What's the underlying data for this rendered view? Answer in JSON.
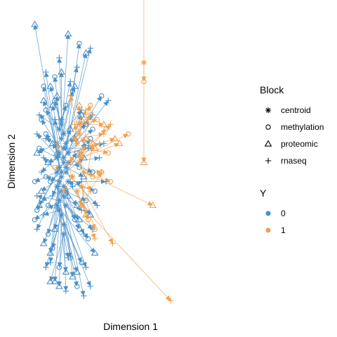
{
  "chart_data": {
    "type": "scatter",
    "title": "",
    "xlabel": "Dimension 1",
    "ylabel": "Dimension 2",
    "xlim": [
      -3.2,
      3.2
    ],
    "ylim": [
      -3.0,
      3.0
    ],
    "show_axes": false,
    "grid": false,
    "colors": {
      "0": "#4a90c8",
      "1": "#f0a050"
    },
    "legends": [
      {
        "title": "Block",
        "position": "right",
        "entries": [
          {
            "label": "centroid",
            "shape": "asterisk"
          },
          {
            "label": "methylation",
            "shape": "circle"
          },
          {
            "label": "proteomic",
            "shape": "triangle"
          },
          {
            "label": "rnaseq",
            "shape": "plus"
          }
        ]
      },
      {
        "title": "Y",
        "position": "right",
        "entries": [
          {
            "label": "0",
            "color": "#4a90c8"
          },
          {
            "label": "1",
            "color": "#f0a050"
          }
        ]
      }
    ],
    "samples": [
      {
        "y": "0",
        "centroid": [
          -1.8,
          -0.1
        ],
        "points": {
          "methylation": [
            -2.5,
            1.6
          ],
          "proteomic": [
            -2.9,
            2.9
          ],
          "rnaseq": [
            -2.4,
            1.9
          ]
        }
      },
      {
        "y": "0",
        "centroid": [
          -1.5,
          0.3
        ],
        "points": {
          "methylation": [
            -0.9,
            2.5
          ],
          "proteomic": [
            -0.6,
            2.3
          ],
          "rnaseq": [
            -0.4,
            2.4
          ]
        }
      },
      {
        "y": "0",
        "centroid": [
          -1.7,
          -0.6
        ],
        "points": {
          "methylation": [
            -2.6,
            -0.8
          ],
          "proteomic": [
            -2.0,
            -2.5
          ],
          "rnaseq": [
            -0.7,
            -2.8
          ]
        }
      },
      {
        "y": "0",
        "centroid": [
          -1.6,
          0.1
        ],
        "points": {
          "methylation": [
            0.1,
            1.4
          ],
          "proteomic": [
            -2.1,
            1.2
          ],
          "rnaseq": [
            0.4,
            1.3
          ]
        }
      },
      {
        "y": "0",
        "centroid": [
          -1.9,
          -0.9
        ],
        "points": {
          "methylation": [
            -0.8,
            -2.1
          ],
          "proteomic": [
            -0.2,
            -1.9
          ],
          "rnaseq": [
            -0.4,
            -2.6
          ]
        }
      },
      {
        "y": "0",
        "centroid": [
          -1.7,
          0.5
        ],
        "points": {
          "methylation": [
            -2.0,
            1.8
          ],
          "proteomic": [
            -1.4,
            2.7
          ],
          "rnaseq": [
            -1.0,
            2.0
          ]
        }
      },
      {
        "y": "0",
        "centroid": [
          -1.8,
          -0.4
        ],
        "points": {
          "methylation": [
            -2.4,
            -0.3
          ],
          "proteomic": [
            -2.2,
            -1.9
          ],
          "rnaseq": [
            -2.8,
            -1.4
          ]
        }
      },
      {
        "y": "0",
        "centroid": [
          -1.5,
          -0.2
        ],
        "points": {
          "methylation": [
            -0.4,
            0.5
          ],
          "proteomic": [
            -0.7,
            0.1
          ],
          "rnaseq": [
            -0.1,
            -0.9
          ]
        }
      },
      {
        "y": "0",
        "centroid": [
          -1.6,
          0.0
        ],
        "points": {
          "methylation": [
            -2.8,
            -1.0
          ],
          "proteomic": [
            -2.1,
            0.4
          ],
          "rnaseq": [
            -2.8,
            0.6
          ]
        }
      },
      {
        "y": "0",
        "centroid": [
          -1.9,
          -0.5
        ],
        "points": {
          "methylation": [
            -1.0,
            -2.6
          ],
          "proteomic": [
            -1.5,
            -2.3
          ],
          "rnaseq": [
            -0.6,
            -2.2
          ]
        }
      },
      {
        "y": "0",
        "centroid": [
          -1.4,
          0.2
        ],
        "points": {
          "methylation": [
            -0.3,
            0.7
          ],
          "proteomic": [
            -0.8,
            1.0
          ],
          "rnaseq": [
            0.2,
            0.4
          ]
        }
      },
      {
        "y": "0",
        "centroid": [
          -1.7,
          -0.3
        ],
        "points": {
          "methylation": [
            -2.3,
            -1.5
          ],
          "proteomic": [
            -2.6,
            -0.6
          ],
          "rnaseq": [
            -2.2,
            -2.1
          ]
        }
      },
      {
        "y": "0",
        "centroid": [
          -1.6,
          -0.7
        ],
        "points": {
          "methylation": [
            -0.9,
            -1.4
          ],
          "proteomic": [
            -1.2,
            -2.4
          ],
          "rnaseq": [
            -0.8,
            -1.0
          ]
        }
      },
      {
        "y": "0",
        "centroid": [
          -1.8,
          0.2
        ],
        "points": {
          "methylation": [
            -2.4,
            0.6
          ],
          "proteomic": [
            -2.5,
            1.3
          ],
          "rnaseq": [
            -2.0,
            0.9
          ]
        }
      },
      {
        "y": "0",
        "centroid": [
          -1.5,
          -0.9
        ],
        "points": {
          "methylation": [
            -0.5,
            -1.6
          ],
          "proteomic": [
            -0.9,
            -1.2
          ],
          "rnaseq": [
            -0.3,
            -1.4
          ]
        }
      },
      {
        "y": "0",
        "centroid": [
          -1.9,
          0.1
        ],
        "points": {
          "methylation": [
            -2.7,
            0.3
          ],
          "proteomic": [
            -2.3,
            0.0
          ],
          "rnaseq": [
            -2.6,
            -0.2
          ]
        }
      },
      {
        "y": "0",
        "centroid": [
          -1.6,
          0.6
        ],
        "points": {
          "methylation": [
            -1.2,
            1.5
          ],
          "proteomic": [
            -2.2,
            1.6
          ],
          "rnaseq": [
            -0.8,
            1.1
          ]
        }
      },
      {
        "y": "0",
        "centroid": [
          -1.7,
          -1.1
        ],
        "points": {
          "methylation": [
            -2.1,
            -1.8
          ],
          "proteomic": [
            -1.8,
            -2.6
          ],
          "rnaseq": [
            -2.4,
            -2.2
          ]
        }
      },
      {
        "y": "0",
        "centroid": [
          -1.5,
          0.4
        ],
        "points": {
          "methylation": [
            -0.6,
            0.8
          ],
          "proteomic": [
            -1.1,
            0.5
          ],
          "rnaseq": [
            -0.3,
            1.0
          ]
        }
      },
      {
        "y": "0",
        "centroid": [
          -1.8,
          -0.8
        ],
        "points": {
          "methylation": [
            -2.9,
            -1.2
          ],
          "proteomic": [
            -2.5,
            -1.7
          ],
          "rnaseq": [
            -2.8,
            -0.7
          ]
        }
      },
      {
        "y": "0",
        "centroid": [
          -1.4,
          -0.4
        ],
        "points": {
          "methylation": [
            -0.2,
            -0.6
          ],
          "proteomic": [
            -0.4,
            -1.1
          ],
          "rnaseq": [
            0.3,
            -0.4
          ]
        }
      },
      {
        "y": "0",
        "centroid": [
          -1.7,
          0.8
        ],
        "points": {
          "methylation": [
            -2.0,
            1.3
          ],
          "proteomic": [
            -1.7,
            1.9
          ],
          "rnaseq": [
            -1.3,
            1.7
          ]
        }
      },
      {
        "y": "0",
        "centroid": [
          -1.6,
          -1.3
        ],
        "points": {
          "methylation": [
            -1.3,
            -2.0
          ],
          "proteomic": [
            -1.0,
            -2.3
          ],
          "rnaseq": [
            -1.5,
            -2.7
          ]
        }
      },
      {
        "y": "0",
        "centroid": [
          -1.9,
          0.4
        ],
        "points": {
          "methylation": [
            -2.6,
            0.9
          ],
          "proteomic": [
            -2.8,
            0.2
          ],
          "rnaseq": [
            -2.4,
            0.5
          ]
        }
      },
      {
        "y": "0",
        "centroid": [
          -1.5,
          -0.1
        ],
        "points": {
          "methylation": [
            -1.0,
            0.2
          ],
          "proteomic": [
            -0.7,
            -0.3
          ],
          "rnaseq": [
            -1.2,
            -0.5
          ]
        }
      },
      {
        "y": "0",
        "centroid": [
          -1.8,
          -1.0
        ],
        "points": {
          "methylation": [
            -2.3,
            -0.9
          ],
          "proteomic": [
            -2.0,
            -1.4
          ],
          "rnaseq": [
            -2.5,
            -1.1
          ]
        }
      },
      {
        "y": "0",
        "centroid": [
          -1.6,
          0.3
        ],
        "points": {
          "methylation": [
            -0.9,
            -0.1
          ],
          "proteomic": [
            -1.3,
            0.7
          ],
          "rnaseq": [
            -0.5,
            0.3
          ]
        }
      },
      {
        "y": "0",
        "centroid": [
          -1.7,
          -0.2
        ],
        "points": {
          "methylation": [
            -2.2,
            -0.4
          ],
          "proteomic": [
            -1.9,
            0.2
          ],
          "rnaseq": [
            -2.1,
            -0.7
          ]
        }
      },
      {
        "y": "0",
        "centroid": [
          -1.5,
          -0.6
        ],
        "points": {
          "methylation": [
            -0.6,
            -0.8
          ],
          "proteomic": [
            -1.0,
            -0.9
          ],
          "rnaseq": [
            -0.8,
            -0.4
          ]
        }
      },
      {
        "y": "0",
        "centroid": [
          -1.8,
          0.7
        ],
        "points": {
          "methylation": [
            -2.4,
            1.1
          ],
          "proteomic": [
            -1.9,
            1.4
          ],
          "rnaseq": [
            -2.7,
            1.0
          ]
        }
      },
      {
        "y": "0",
        "centroid": [
          -1.6,
          -1.5
        ],
        "points": {
          "methylation": [
            -1.8,
            -2.2
          ],
          "proteomic": [
            -2.2,
            -2.5
          ],
          "rnaseq": [
            -1.4,
            -2.0
          ]
        }
      },
      {
        "y": "0",
        "centroid": [
          -1.4,
          0.0
        ],
        "points": {
          "methylation": [
            -0.3,
            -0.2
          ],
          "proteomic": [
            -0.6,
            0.4
          ],
          "rnaseq": [
            0.0,
            0.1
          ]
        }
      },
      {
        "y": "0",
        "centroid": [
          -1.9,
          -0.2
        ],
        "points": {
          "methylation": [
            -2.9,
            -0.4
          ],
          "proteomic": [
            -2.7,
            -0.9
          ],
          "rnaseq": [
            -2.5,
            0.1
          ]
        }
      },
      {
        "y": "0",
        "centroid": [
          -1.7,
          0.9
        ],
        "points": {
          "methylation": [
            -1.5,
            1.2
          ],
          "proteomic": [
            -1.1,
            1.6
          ],
          "rnaseq": [
            -1.8,
            2.2
          ]
        }
      },
      {
        "y": "0",
        "centroid": [
          -1.6,
          -0.5
        ],
        "points": {
          "methylation": [
            -1.1,
            -1.2
          ],
          "proteomic": [
            -1.4,
            -0.7
          ],
          "rnaseq": [
            -0.7,
            -1.5
          ]
        }
      },
      {
        "y": "1",
        "centroid": [
          -0.9,
          0.6
        ],
        "points": {
          "methylation": [
            -0.4,
            1.2
          ],
          "proteomic": [
            -0.8,
            0.9
          ],
          "rnaseq": [
            -1.3,
            1.4
          ]
        }
      },
      {
        "y": "1",
        "centroid": [
          -0.8,
          0.2
        ],
        "points": {
          "methylation": [
            0.3,
            0.7
          ],
          "proteomic": [
            -0.2,
            0.3
          ],
          "rnaseq": [
            -0.5,
            0.9
          ]
        }
      },
      {
        "y": "1",
        "centroid": [
          -1.0,
          0.4
        ],
        "points": {
          "methylation": [
            -1.3,
            0.0
          ],
          "proteomic": [
            -0.6,
            0.5
          ],
          "rnaseq": [
            -1.1,
            0.8
          ]
        }
      },
      {
        "y": "1",
        "centroid": [
          -0.7,
          -0.2
        ],
        "points": {
          "methylation": [
            0.5,
            -0.4
          ],
          "proteomic": [
            2.4,
            -0.9
          ],
          "rnaseq": [
            0.1,
            -0.2
          ]
        }
      },
      {
        "y": "1",
        "centroid": [
          -0.9,
          0.0
        ],
        "points": {
          "methylation": [
            -0.3,
            -0.3
          ],
          "proteomic": [
            -0.9,
            0.2
          ],
          "rnaseq": [
            -0.4,
            -0.6
          ]
        }
      },
      {
        "y": "1",
        "centroid": [
          -0.8,
          -0.5
        ],
        "points": {
          "methylation": [
            -0.2,
            -1.4
          ],
          "proteomic": [
            -0.6,
            -1.1
          ],
          "rnaseq": [
            0.6,
            -1.7
          ]
        }
      },
      {
        "y": "1",
        "centroid": [
          -1.1,
          0.5
        ],
        "points": {
          "methylation": [
            -0.4,
            1.0
          ],
          "proteomic": [
            -0.9,
            1.2
          ],
          "rnaseq": [
            0.2,
            0.6
          ]
        }
      },
      {
        "y": "1",
        "centroid": [
          -0.8,
          -0.9
        ],
        "points": {
          "methylation": [
            0.1,
            -0.2
          ],
          "proteomic": [
            -0.3,
            0.4
          ],
          "rnaseq": [
            3.2,
            -2.9
          ]
        }
      },
      {
        "y": "1",
        "centroid": [
          -1.2,
          -0.3
        ],
        "points": {
          "methylation": [
            -2.0,
            -0.1
          ],
          "proteomic": [
            -1.6,
            -0.6
          ],
          "rnaseq": [
            -1.9,
            0.4
          ]
        }
      },
      {
        "y": "1",
        "centroid": [
          -0.9,
          0.8
        ],
        "points": {
          "methylation": [
            -0.1,
            0.9
          ],
          "proteomic": [
            0.2,
            0.8
          ],
          "rnaseq": [
            -0.6,
            1.1
          ]
        }
      },
      {
        "y": "1",
        "centroid": [
          -0.7,
          0.3
        ],
        "points": {
          "methylation": [
            0.4,
            0.2
          ],
          "proteomic": [
            0.7,
            0.5
          ],
          "rnaseq": [
            0.0,
            0.4
          ]
        }
      },
      {
        "y": "1",
        "centroid": [
          -1.0,
          -0.6
        ],
        "points": {
          "methylation": [
            -0.5,
            -1.2
          ],
          "proteomic": [
            -0.8,
            -0.9
          ],
          "rnaseq": [
            -0.2,
            -1.6
          ]
        }
      },
      {
        "y": "1",
        "centroid": [
          -0.8,
          0.1
        ],
        "points": {
          "methylation": [
            1.3,
            0.6
          ],
          "proteomic": [
            0.9,
            0.4
          ],
          "rnaseq": [
            0.5,
            0.8
          ]
        }
      },
      {
        "y": "1",
        "centroid": [
          2.0,
          2.1
        ],
        "points": {
          "methylation": [
            2.0,
            1.7
          ],
          "proteomic": [
            2.0,
            0.0
          ],
          "rnaseq": [
            2.0,
            4.1
          ]
        }
      }
    ]
  }
}
